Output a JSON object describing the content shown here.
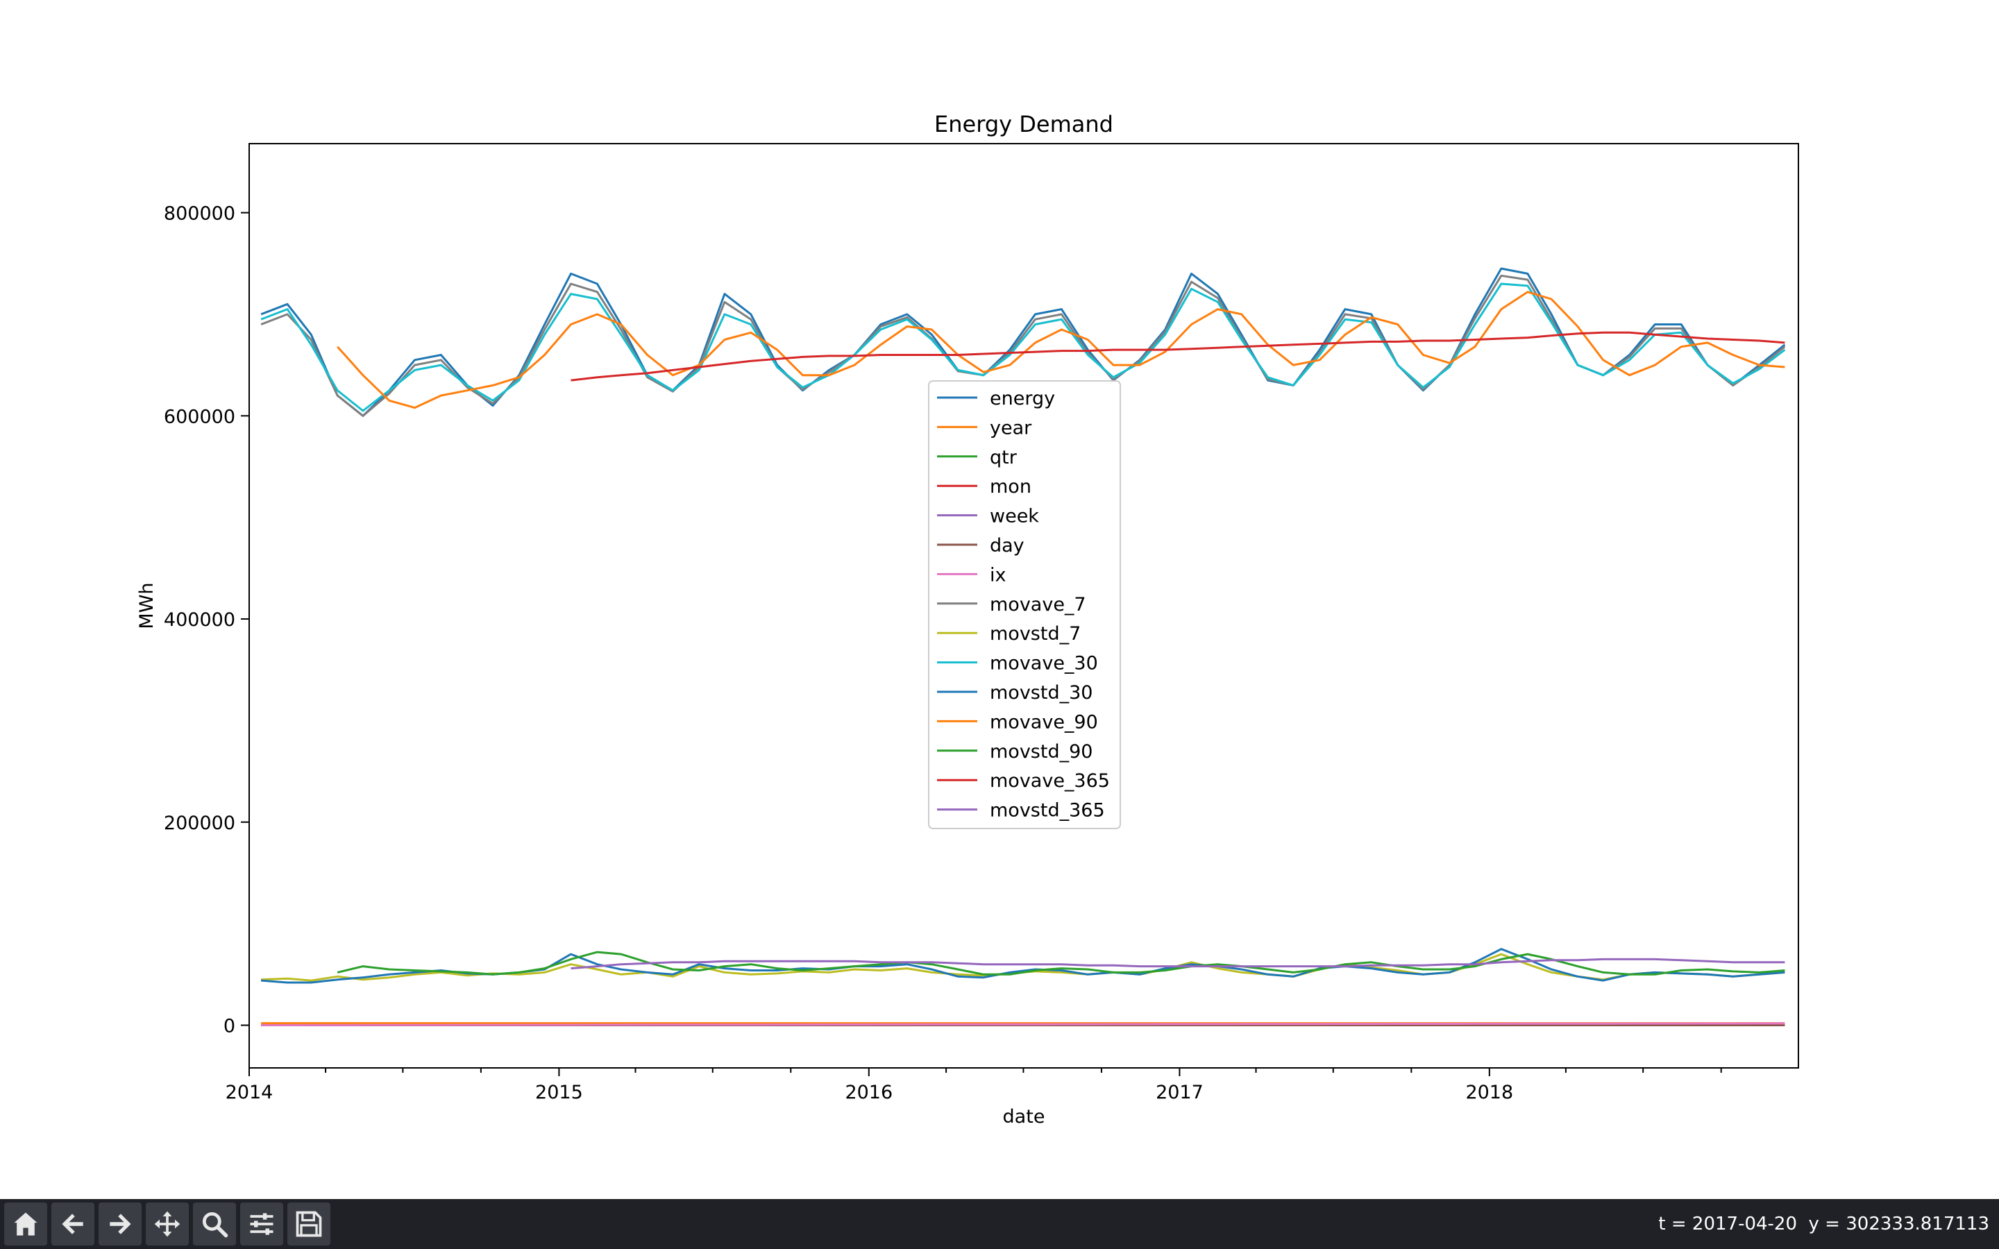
{
  "chart_data": {
    "type": "line",
    "title": "Energy Demand",
    "xlabel": "date",
    "ylabel": "MWh",
    "xlim": [
      "2014-01-01",
      "2018-12-31"
    ],
    "ylim": [
      -42000,
      868000
    ],
    "x_ticks": [
      "2014",
      "2015",
      "2016",
      "2017",
      "2018"
    ],
    "y_ticks": [
      "0",
      "200000",
      "400000",
      "600000",
      "800000"
    ],
    "y_tick_values": [
      0,
      200000,
      400000,
      600000,
      800000
    ],
    "grid": false,
    "legend_position": "center",
    "x": [
      "2014-01",
      "2014-02",
      "2014-03",
      "2014-04",
      "2014-05",
      "2014-06",
      "2014-07",
      "2014-08",
      "2014-09",
      "2014-10",
      "2014-11",
      "2014-12",
      "2015-01",
      "2015-02",
      "2015-03",
      "2015-04",
      "2015-05",
      "2015-06",
      "2015-07",
      "2015-08",
      "2015-09",
      "2015-10",
      "2015-11",
      "2015-12",
      "2016-01",
      "2016-02",
      "2016-03",
      "2016-04",
      "2016-05",
      "2016-06",
      "2016-07",
      "2016-08",
      "2016-09",
      "2016-10",
      "2016-11",
      "2016-12",
      "2017-01",
      "2017-02",
      "2017-03",
      "2017-04",
      "2017-05",
      "2017-06",
      "2017-07",
      "2017-08",
      "2017-09",
      "2017-10",
      "2017-11",
      "2017-12",
      "2018-01",
      "2018-02",
      "2018-03",
      "2018-04",
      "2018-05",
      "2018-06",
      "2018-07",
      "2018-08",
      "2018-09",
      "2018-10",
      "2018-11",
      "2018-12"
    ],
    "series": [
      {
        "name": "energy",
        "color": "#1f77b4",
        "values": [
          700000,
          710000,
          680000,
          620000,
          600000,
          625000,
          655000,
          660000,
          630000,
          610000,
          640000,
          690000,
          740000,
          730000,
          690000,
          640000,
          625000,
          650000,
          720000,
          700000,
          650000,
          625000,
          645000,
          660000,
          690000,
          700000,
          680000,
          645000,
          640000,
          665000,
          700000,
          705000,
          665000,
          635000,
          655000,
          685000,
          740000,
          720000,
          680000,
          635000,
          630000,
          665000,
          705000,
          700000,
          650000,
          625000,
          650000,
          700000,
          745000,
          740000,
          700000,
          650000,
          640000,
          660000,
          690000,
          690000,
          650000,
          630000,
          650000,
          670000
        ]
      },
      {
        "name": "year",
        "color": "#ff7f0e",
        "values": [
          2014,
          2014,
          2014,
          2014,
          2014,
          2014,
          2014,
          2014,
          2014,
          2014,
          2014,
          2014,
          2015,
          2015,
          2015,
          2015,
          2015,
          2015,
          2015,
          2015,
          2015,
          2015,
          2015,
          2015,
          2016,
          2016,
          2016,
          2016,
          2016,
          2016,
          2016,
          2016,
          2016,
          2016,
          2016,
          2016,
          2017,
          2017,
          2017,
          2017,
          2017,
          2017,
          2017,
          2017,
          2017,
          2017,
          2017,
          2017,
          2018,
          2018,
          2018,
          2018,
          2018,
          2018,
          2018,
          2018,
          2018,
          2018,
          2018,
          2018
        ]
      },
      {
        "name": "qtr",
        "color": "#2ca02c",
        "values": [
          1,
          1,
          1,
          2,
          2,
          2,
          3,
          3,
          3,
          4,
          4,
          4,
          1,
          1,
          1,
          2,
          2,
          2,
          3,
          3,
          3,
          4,
          4,
          4,
          1,
          1,
          1,
          2,
          2,
          2,
          3,
          3,
          3,
          4,
          4,
          4,
          1,
          1,
          1,
          2,
          2,
          2,
          3,
          3,
          3,
          4,
          4,
          4,
          1,
          1,
          1,
          2,
          2,
          2,
          3,
          3,
          3,
          4,
          4,
          4
        ]
      },
      {
        "name": "mon",
        "color": "#d62728",
        "values": [
          1,
          2,
          3,
          4,
          5,
          6,
          7,
          8,
          9,
          10,
          11,
          12,
          1,
          2,
          3,
          4,
          5,
          6,
          7,
          8,
          9,
          10,
          11,
          12,
          1,
          2,
          3,
          4,
          5,
          6,
          7,
          8,
          9,
          10,
          11,
          12,
          1,
          2,
          3,
          4,
          5,
          6,
          7,
          8,
          9,
          10,
          11,
          12,
          1,
          2,
          3,
          4,
          5,
          6,
          7,
          8,
          9,
          10,
          11,
          12
        ]
      },
      {
        "name": "week",
        "color": "#9467bd",
        "values": [
          3,
          7,
          11,
          16,
          20,
          24,
          29,
          33,
          37,
          42,
          46,
          50,
          3,
          7,
          11,
          16,
          20,
          24,
          29,
          33,
          37,
          42,
          46,
          50,
          3,
          7,
          11,
          16,
          20,
          24,
          29,
          33,
          37,
          42,
          46,
          50,
          3,
          7,
          11,
          16,
          20,
          24,
          29,
          33,
          37,
          42,
          46,
          50,
          3,
          7,
          11,
          16,
          20,
          24,
          29,
          33,
          37,
          42,
          46,
          50
        ]
      },
      {
        "name": "day",
        "color": "#8c564b",
        "values": [
          15,
          15,
          15,
          15,
          15,
          15,
          15,
          15,
          15,
          15,
          15,
          15,
          15,
          15,
          15,
          15,
          15,
          15,
          15,
          15,
          15,
          15,
          15,
          15,
          15,
          15,
          15,
          15,
          15,
          15,
          15,
          15,
          15,
          15,
          15,
          15,
          15,
          15,
          15,
          15,
          15,
          15,
          15,
          15,
          15,
          15,
          15,
          15,
          15,
          15,
          15,
          15,
          15,
          15,
          15,
          15,
          15,
          15,
          15,
          15
        ]
      },
      {
        "name": "ix",
        "color": "#e377c2",
        "values": [
          15,
          45,
          74,
          105,
          135,
          166,
          196,
          227,
          258,
          288,
          319,
          349,
          380,
          410,
          439,
          470,
          500,
          531,
          561,
          592,
          623,
          653,
          684,
          714,
          745,
          775,
          805,
          836,
          866,
          897,
          927,
          958,
          989,
          1019,
          1050,
          1080,
          1111,
          1141,
          1170,
          1201,
          1231,
          1262,
          1292,
          1323,
          1354,
          1384,
          1415,
          1445,
          1476,
          1506,
          1535,
          1566,
          1596,
          1627,
          1657,
          1688,
          1719,
          1749,
          1780,
          1810
        ]
      },
      {
        "name": "movave_7",
        "color": "#7f7f7f",
        "values": [
          690000,
          700000,
          675000,
          620000,
          600000,
          622000,
          650000,
          655000,
          628000,
          612000,
          638000,
          685000,
          730000,
          722000,
          685000,
          638000,
          624000,
          648000,
          712000,
          695000,
          648000,
          626000,
          643000,
          660000,
          688000,
          697000,
          676000,
          644000,
          640000,
          662000,
          695000,
          700000,
          662000,
          636000,
          654000,
          683000,
          732000,
          716000,
          677000,
          636000,
          630000,
          662000,
          700000,
          696000,
          650000,
          626000,
          650000,
          696000,
          738000,
          734000,
          695000,
          650000,
          640000,
          658000,
          686000,
          686000,
          650000,
          630000,
          648000,
          668000
        ]
      },
      {
        "name": "movstd_7",
        "color": "#bcbd22",
        "values": [
          45000,
          46000,
          44000,
          48000,
          45000,
          47000,
          50000,
          52000,
          49000,
          51000,
          50000,
          52000,
          60000,
          55000,
          50000,
          52000,
          48000,
          58000,
          52000,
          50000,
          51000,
          53000,
          52000,
          55000,
          54000,
          56000,
          52000,
          50000,
          49000,
          51000,
          53000,
          52000,
          50000,
          52000,
          50000,
          55000,
          62000,
          56000,
          52000,
          50000,
          48000,
          55000,
          60000,
          57000,
          54000,
          50000,
          52000,
          60000,
          70000,
          60000,
          52000,
          48000,
          45000,
          50000,
          52000,
          51000,
          50000,
          48000,
          50000,
          52000
        ]
      },
      {
        "name": "movave_30",
        "color": "#17becf",
        "values": [
          695000,
          705000,
          670000,
          625000,
          605000,
          625000,
          645000,
          650000,
          630000,
          615000,
          635000,
          680000,
          720000,
          715000,
          680000,
          640000,
          625000,
          645000,
          700000,
          690000,
          648000,
          628000,
          640000,
          660000,
          685000,
          695000,
          675000,
          645000,
          640000,
          660000,
          690000,
          695000,
          660000,
          638000,
          652000,
          680000,
          725000,
          712000,
          675000,
          638000,
          630000,
          660000,
          695000,
          692000,
          650000,
          628000,
          648000,
          690000,
          730000,
          728000,
          692000,
          650000,
          640000,
          655000,
          680000,
          682000,
          650000,
          632000,
          646000,
          665000
        ]
      },
      {
        "name": "movstd_30",
        "color": "#1f77b4",
        "values": [
          44000,
          42000,
          42000,
          45000,
          47000,
          50000,
          52000,
          54000,
          51000,
          50000,
          52000,
          55000,
          70000,
          60000,
          55000,
          52000,
          50000,
          60000,
          56000,
          54000,
          54000,
          56000,
          55000,
          58000,
          58000,
          60000,
          55000,
          48000,
          47000,
          52000,
          55000,
          54000,
          50000,
          52000,
          50000,
          56000,
          60000,
          58000,
          55000,
          50000,
          48000,
          56000,
          58000,
          56000,
          52000,
          50000,
          52000,
          62000,
          75000,
          65000,
          55000,
          48000,
          44000,
          50000,
          52000,
          51000,
          50000,
          48000,
          50000,
          52000
        ]
      },
      {
        "name": "movave_90",
        "color": "#ff7f0e",
        "values": [
          null,
          null,
          null,
          668000,
          640000,
          615000,
          608000,
          620000,
          625000,
          630000,
          638000,
          660000,
          690000,
          700000,
          690000,
          660000,
          640000,
          650000,
          675000,
          682000,
          665000,
          640000,
          640000,
          650000,
          670000,
          688000,
          685000,
          660000,
          643000,
          650000,
          672000,
          685000,
          675000,
          650000,
          650000,
          663000,
          690000,
          705000,
          700000,
          670000,
          650000,
          655000,
          680000,
          697000,
          690000,
          660000,
          652000,
          668000,
          705000,
          722000,
          715000,
          688000,
          655000,
          640000,
          650000,
          668000,
          672000,
          660000,
          650000,
          648000
        ]
      },
      {
        "name": "movstd_90",
        "color": "#2ca02c",
        "values": [
          null,
          null,
          null,
          52000,
          58000,
          55000,
          54000,
          53000,
          52000,
          50000,
          52000,
          56000,
          65000,
          72000,
          70000,
          62000,
          55000,
          54000,
          58000,
          60000,
          56000,
          54000,
          56000,
          58000,
          60000,
          62000,
          60000,
          55000,
          50000,
          50000,
          54000,
          56000,
          55000,
          52000,
          52000,
          54000,
          58000,
          60000,
          58000,
          55000,
          52000,
          55000,
          60000,
          62000,
          58000,
          55000,
          55000,
          58000,
          65000,
          70000,
          65000,
          58000,
          52000,
          50000,
          50000,
          54000,
          55000,
          53000,
          52000,
          54000
        ]
      },
      {
        "name": "movave_365",
        "color": "#d62728",
        "values": [
          null,
          null,
          null,
          null,
          null,
          null,
          null,
          null,
          null,
          null,
          null,
          null,
          635000,
          638000,
          640000,
          642000,
          645000,
          648000,
          651000,
          654000,
          656000,
          658000,
          659000,
          659000,
          660000,
          660000,
          660000,
          660000,
          661000,
          662000,
          663000,
          664000,
          664000,
          665000,
          665000,
          665000,
          666000,
          667000,
          668000,
          669000,
          670000,
          671000,
          672000,
          673000,
          673000,
          674000,
          674000,
          675000,
          676000,
          677000,
          679000,
          681000,
          682000,
          682000,
          680000,
          678000,
          676000,
          675000,
          674000,
          672000
        ]
      },
      {
        "name": "movstd_365",
        "color": "#9467bd",
        "values": [
          null,
          null,
          null,
          null,
          null,
          null,
          null,
          null,
          null,
          null,
          null,
          null,
          56000,
          58000,
          60000,
          61000,
          62000,
          62000,
          63000,
          63000,
          63000,
          63000,
          63000,
          63000,
          62000,
          62000,
          62000,
          61000,
          60000,
          60000,
          60000,
          60000,
          59000,
          59000,
          58000,
          58000,
          58000,
          58000,
          58000,
          58000,
          58000,
          58000,
          58000,
          59000,
          59000,
          59000,
          60000,
          60000,
          62000,
          63000,
          64000,
          64000,
          65000,
          65000,
          65000,
          64000,
          63000,
          62000,
          62000,
          62000
        ]
      }
    ]
  },
  "toolbar": {
    "buttons": [
      {
        "name": "home-button",
        "icon": "home-icon"
      },
      {
        "name": "back-button",
        "icon": "arrow-left-icon"
      },
      {
        "name": "forward-button",
        "icon": "arrow-right-icon"
      },
      {
        "name": "pan-button",
        "icon": "move-icon"
      },
      {
        "name": "zoom-button",
        "icon": "magnifier-icon"
      },
      {
        "name": "configure-subplots-button",
        "icon": "sliders-icon"
      },
      {
        "name": "save-button",
        "icon": "floppy-disk-icon"
      }
    ],
    "coords": "t = 2017-04-20  y = 302333.817113"
  }
}
